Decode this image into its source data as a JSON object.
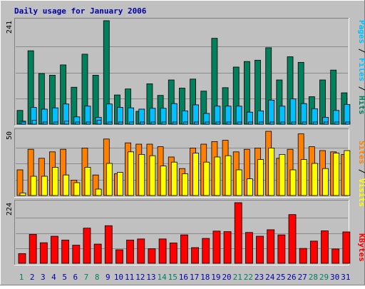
{
  "title": "Daily usage for January 2006",
  "colors": {
    "background": "#c0c0c0",
    "frame_dark": "#808080",
    "title": "#0000aa",
    "hits": "#00805c",
    "files": "#00c0ff",
    "pages": "#00c0ff",
    "visits": "#ffff00",
    "sites": "#ff8000",
    "kbytes": "#ff0000",
    "weekend_label": "#00805c",
    "weekday_label": "#0000aa"
  },
  "legend": {
    "pages": "Pages",
    "files": "Files",
    "hits": "Hits",
    "sites": "Sites",
    "visits": "Visits",
    "kbytes": "KBytes",
    "sep": " / "
  },
  "chart_data": [
    {
      "type": "bar",
      "panel": "hits-files-pages",
      "ymax_label": "241",
      "ylim": [
        0,
        241
      ],
      "categories": [
        "1",
        "2",
        "3",
        "4",
        "5",
        "6",
        "7",
        "8",
        "9",
        "10",
        "11",
        "12",
        "13",
        "14",
        "15",
        "16",
        "17",
        "18",
        "19",
        "20",
        "21",
        "22",
        "23",
        "24",
        "25",
        "26",
        "27",
        "28",
        "29",
        "30",
        "31"
      ],
      "weekend_days": [
        "1",
        "7",
        "8",
        "14",
        "15",
        "21",
        "22",
        "28",
        "29"
      ],
      "series": [
        {
          "name": "Hits",
          "values": [
            32,
            171,
            118,
            114,
            138,
            86,
            163,
            114,
            241,
            68,
            82,
            30,
            94,
            67,
            103,
            84,
            105,
            77,
            200,
            85,
            133,
            146,
            149,
            178,
            103,
            157,
            144,
            64,
            103,
            126,
            73
          ]
        },
        {
          "name": "Files",
          "values": [
            7,
            39,
            35,
            38,
            47,
            17,
            42,
            16,
            47,
            39,
            38,
            35,
            37,
            37,
            48,
            31,
            45,
            25,
            42,
            42,
            42,
            28,
            31,
            56,
            42,
            59,
            48,
            36,
            16,
            32,
            46
          ]
        },
        {
          "name": "Pages",
          "values": [
            5,
            9,
            5,
            5,
            7,
            5,
            5,
            9,
            5,
            5,
            5,
            5,
            5,
            5,
            5,
            5,
            5,
            5,
            5,
            5,
            5,
            5,
            5,
            5,
            5,
            5,
            5,
            5,
            5,
            5,
            5
          ]
        }
      ]
    },
    {
      "type": "bar",
      "panel": "sites-visits",
      "ymax_label": "50",
      "ylim": [
        0,
        50
      ],
      "categories": [
        "1",
        "2",
        "3",
        "4",
        "5",
        "6",
        "7",
        "8",
        "9",
        "10",
        "11",
        "12",
        "13",
        "14",
        "15",
        "16",
        "17",
        "18",
        "19",
        "20",
        "21",
        "22",
        "23",
        "24",
        "25",
        "26",
        "27",
        "28",
        "29",
        "30",
        "31"
      ],
      "series": [
        {
          "name": "Sites",
          "values": [
            20,
            36,
            29,
            34,
            36,
            12,
            37,
            16,
            44,
            17,
            41,
            40,
            40,
            38,
            30,
            21,
            37,
            40,
            42,
            43,
            34,
            36,
            37,
            50,
            29,
            36,
            48,
            38,
            35,
            34,
            32
          ]
        },
        {
          "name": "Visits",
          "values": [
            2,
            15,
            15,
            22,
            16,
            10,
            22,
            5,
            25,
            18,
            34,
            32,
            31,
            23,
            26,
            17,
            33,
            26,
            30,
            31,
            20,
            13,
            28,
            37,
            32,
            20,
            28,
            25,
            21,
            33,
            35
          ]
        }
      ]
    },
    {
      "type": "bar",
      "panel": "kbytes",
      "ymax_label": "224",
      "ylim": [
        0,
        224
      ],
      "categories": [
        "1",
        "2",
        "3",
        "4",
        "5",
        "6",
        "7",
        "8",
        "9",
        "10",
        "11",
        "12",
        "13",
        "14",
        "15",
        "16",
        "17",
        "18",
        "19",
        "20",
        "21",
        "22",
        "23",
        "24",
        "25",
        "26",
        "27",
        "28",
        "29",
        "30",
        "31"
      ],
      "series": [
        {
          "name": "KBytes",
          "values": [
            36,
            107,
            76,
            100,
            86,
            67,
            130,
            71,
            139,
            50,
            86,
            90,
            54,
            90,
            75,
            105,
            58,
            92,
            119,
            117,
            224,
            114,
            100,
            124,
            105,
            180,
            55,
            82,
            120,
            53,
            116
          ]
        }
      ]
    }
  ]
}
